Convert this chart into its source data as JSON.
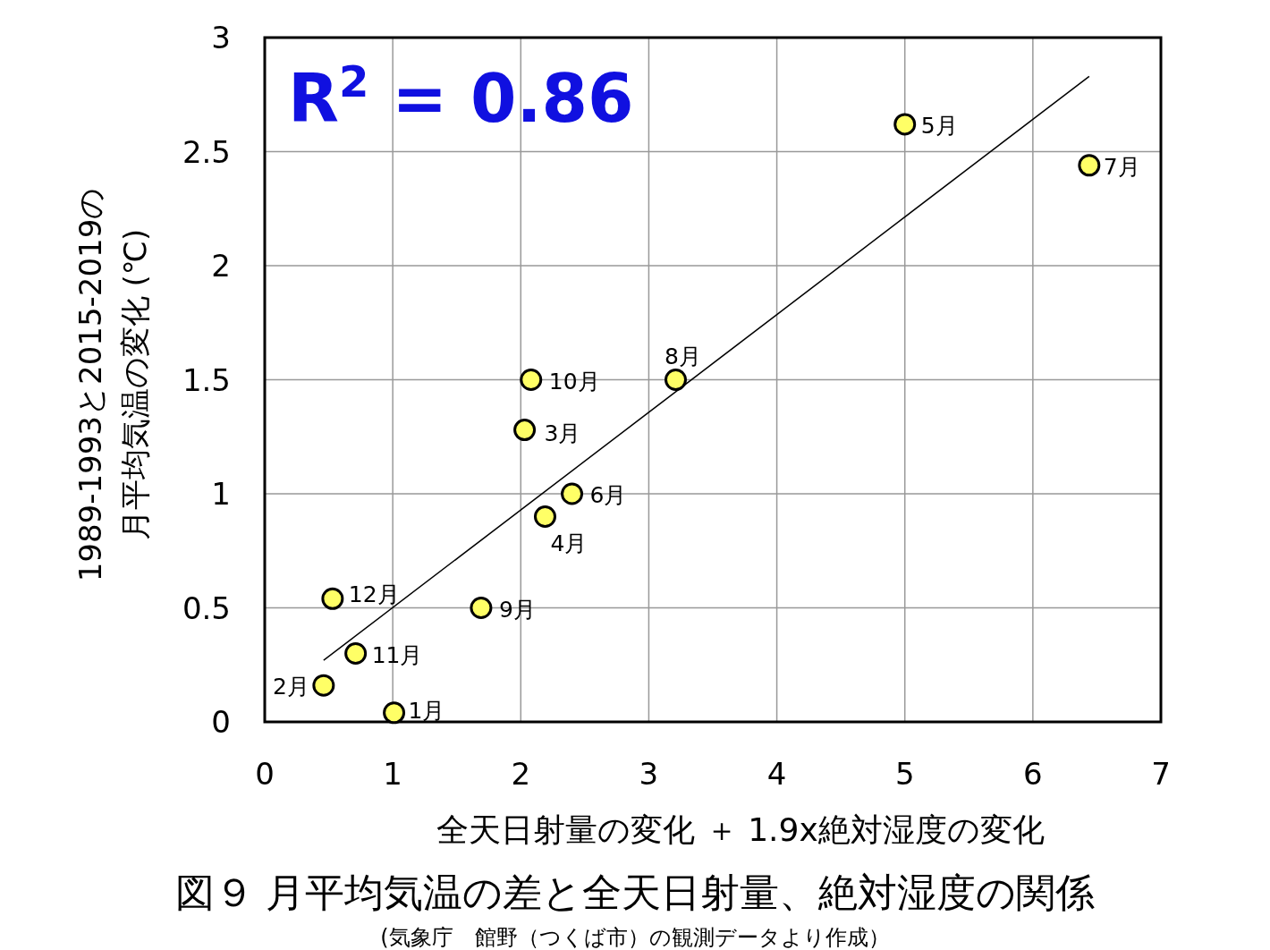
{
  "chart_data": {
    "type": "scatter",
    "title": "図９ 月平均気温の差と全天日射量、絶対湿度の関係",
    "xlabel": "全天日射量の変化 ＋ 1.9x絶対湿度の変化",
    "ylabel": "1989-1993と2015-2019の月平均気温の変化 (℃)",
    "xlim": [
      0,
      7
    ],
    "ylim": [
      0,
      3
    ],
    "xticks": [
      0,
      1,
      2,
      3,
      4,
      5,
      6,
      7
    ],
    "yticks": [
      0,
      0.5,
      1,
      1.5,
      2,
      2.5,
      3
    ],
    "grid": true,
    "marker": "circle",
    "series": [
      {
        "color": "#ffff66",
        "x": [
          1.01,
          0.46,
          2.03,
          2.19,
          5.0,
          2.4,
          6.44,
          3.21,
          1.69,
          2.08,
          0.71,
          0.53
        ],
        "values": [
          0.04,
          0.16,
          1.28,
          0.9,
          2.62,
          1.0,
          2.44,
          1.5,
          0.5,
          1.5,
          0.3,
          0.54
        ]
      },
      {
        "type": "line",
        "color": "#000000",
        "marker": "none",
        "x": [
          0.46,
          6.44
        ],
        "values": [
          0.27,
          2.83
        ]
      }
    ],
    "annotations": [
      "R$^{2}$ = 0.86",
      {
        "text": "1月",
        "x": 1.01,
        "y": 0.04
      },
      {
        "text": "2月",
        "x": 0.46,
        "y": 0.16
      },
      {
        "text": "3月",
        "x": 2.03,
        "y": 1.28
      },
      {
        "text": "4月",
        "x": 2.19,
        "y": 0.9
      },
      {
        "text": "5月",
        "x": 5.0,
        "y": 2.62
      },
      {
        "text": "6月",
        "x": 2.4,
        "y": 1.0
      },
      {
        "text": "7月",
        "x": 6.44,
        "y": 2.44
      },
      {
        "text": "8月",
        "x": 3.21,
        "y": 1.5
      },
      {
        "text": "9月",
        "x": 1.69,
        "y": 0.5
      },
      {
        "text": "10月",
        "x": 2.08,
        "y": 1.5
      },
      {
        "text": "11月",
        "x": 0.71,
        "y": 0.3
      },
      {
        "text": "12月",
        "x": 0.53,
        "y": 0.54
      },
      "(気象庁　館野（つくば市）の観測データより作成）"
    ]
  }
}
